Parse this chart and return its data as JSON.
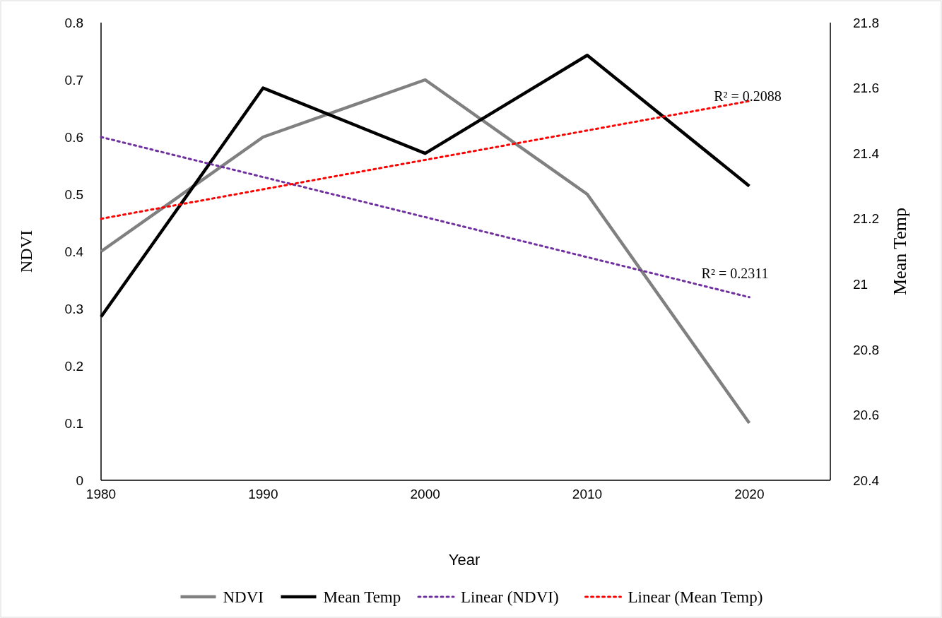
{
  "chart_data": {
    "type": "line",
    "xlabel": "Year",
    "ylabel": "NDVI",
    "y2label": "Mean Temp",
    "x": [
      1980,
      1990,
      2000,
      2010,
      2020
    ],
    "series": [
      {
        "name": "NDVI",
        "color": "#808080",
        "values": [
          0.4,
          0.6,
          0.7,
          0.5,
          0.1
        ]
      },
      {
        "name": "Mean Temp",
        "color": "#000000",
        "axis": "y2",
        "values": [
          20.9,
          21.6,
          21.4,
          21.7,
          21.3
        ]
      },
      {
        "name": "Linear (NDVI)",
        "color": "#7030a0",
        "line_style": "dotted",
        "values": [
          0.6,
          0.53,
          0.46,
          0.39,
          0.32
        ]
      },
      {
        "name": "Linear (Mean Temp)",
        "color": "#ff0000",
        "line_style": "dotted",
        "axis": "y2",
        "values": [
          21.2,
          21.29,
          21.38,
          21.47,
          21.56
        ]
      }
    ],
    "xlim": [
      1980,
      2025
    ],
    "xticks": [
      1980,
      1990,
      2000,
      2010,
      2020
    ],
    "ylim": [
      0,
      0.8
    ],
    "yticks": [
      0,
      0.1,
      0.2,
      0.3,
      0.4,
      0.5,
      0.6,
      0.7,
      0.8
    ],
    "y2lim": [
      20.4,
      21.8
    ],
    "y2ticks": [
      20.4,
      20.6,
      20.8,
      21,
      21.2,
      21.4,
      21.6,
      21.8
    ],
    "annotations": [
      "R² = 0.2088",
      "R² = 0.2311"
    ],
    "legend": "bottom",
    "grid": false,
    "marker": "none"
  }
}
